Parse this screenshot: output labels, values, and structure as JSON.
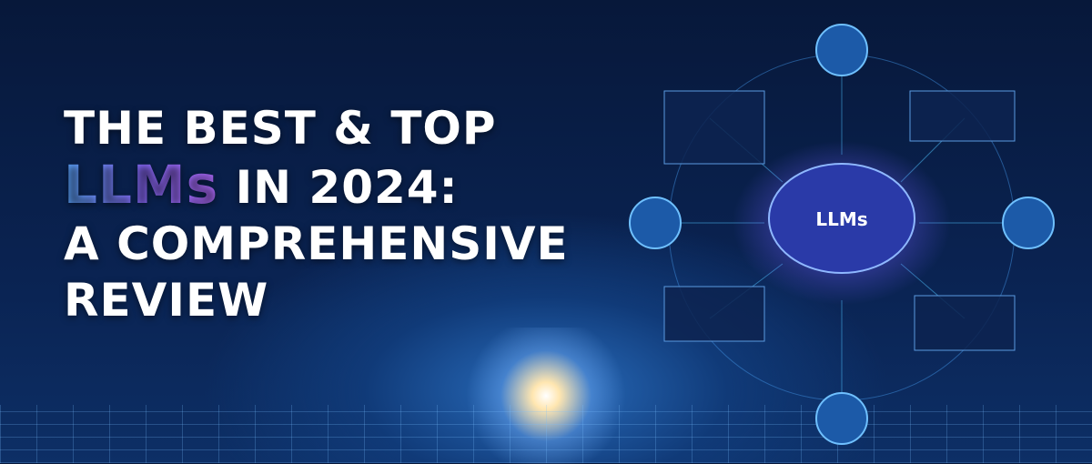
{
  "headline": {
    "line1": "THE BEST & TOP",
    "line2_highlight": "LLMs",
    "line2_rest": " IN 2024:",
    "line3": "A COMPREHENSIVE",
    "line4": "REVIEW"
  },
  "graphic": {
    "brain_label": "LLMs",
    "accent": "#8a6cff",
    "node_color": "#4fc3ff"
  }
}
